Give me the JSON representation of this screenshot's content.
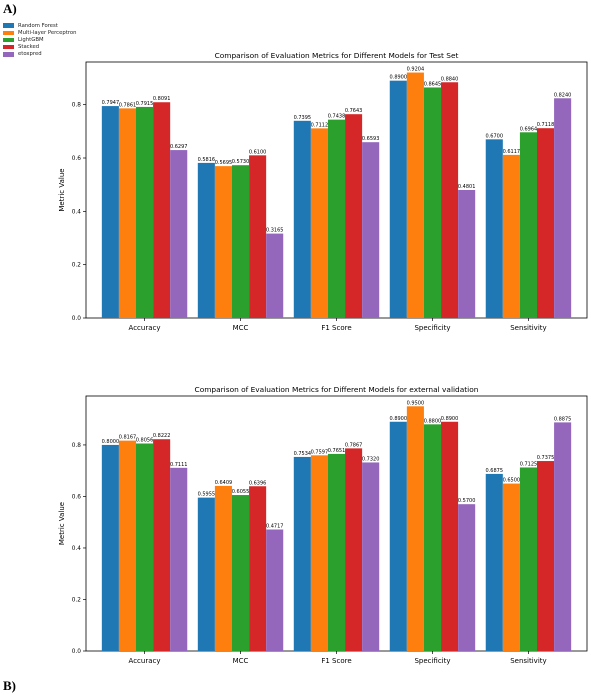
{
  "labels": {
    "top": "A)",
    "bottom": "B)"
  },
  "legend": [
    {
      "name": "Random Forest",
      "color": "#1f77b4"
    },
    {
      "name": "Multi-layer Perceptron",
      "color": "#ff7f0e"
    },
    {
      "name": "LightGBM",
      "color": "#2ca02c"
    },
    {
      "name": "Stacked",
      "color": "#d62728"
    },
    {
      "name": "etoxpred",
      "color": "#9467bd"
    }
  ],
  "chart_data": [
    {
      "type": "bar",
      "title": "Comparison of Evaluation Metrics for Different Models for Test Set",
      "ylabel": "Metric Value",
      "xlabel": "",
      "ylim": [
        0,
        0.96
      ],
      "yticks": [
        "0.0",
        "0.2",
        "0.4",
        "0.6",
        "0.8"
      ],
      "categories": [
        "Accuracy",
        "MCC",
        "F1 Score",
        "Specificity",
        "Sensitivity"
      ],
      "series": [
        {
          "name": "Random Forest",
          "color": "#1f77b4",
          "values": [
            0.7947,
            0.5816,
            0.7395,
            0.89,
            0.67
          ],
          "labels": [
            "0.7947",
            "0.5816",
            "0.7395",
            "0.8900",
            "0.6700"
          ]
        },
        {
          "name": "Multi-layer Perceptron",
          "color": "#ff7f0e",
          "values": [
            0.7861,
            0.5695,
            0.7112,
            0.9204,
            0.6117
          ],
          "labels": [
            "0.7861",
            "0.5695",
            "0.7112",
            "0.9204",
            "0.6117"
          ]
        },
        {
          "name": "LightGBM",
          "color": "#2ca02c",
          "values": [
            0.7915,
            0.573,
            0.7438,
            0.8645,
            0.6964
          ],
          "labels": [
            "0.7915",
            "0.5730",
            "0.7438",
            "0.8645",
            "0.6964"
          ]
        },
        {
          "name": "Stacked",
          "color": "#d62728",
          "values": [
            0.8091,
            0.61,
            0.7643,
            0.884,
            0.7118
          ],
          "labels": [
            "0.8091",
            "0.6100",
            "0.7643",
            "0.8840",
            "0.7118"
          ]
        },
        {
          "name": "etoxpred",
          "color": "#9467bd",
          "values": [
            0.6297,
            0.3165,
            0.6593,
            0.4801,
            0.824
          ],
          "labels": [
            "0.6297",
            "0.3165",
            "0.6593",
            "0.4801",
            "0.8240"
          ]
        }
      ]
    },
    {
      "type": "bar",
      "title": "Comparison of Evaluation Metrics for Different Models for external validation",
      "ylabel": "Metric Value",
      "xlabel": "",
      "ylim": [
        0,
        0.99
      ],
      "yticks": [
        "0.0",
        "0.2",
        "0.4",
        "0.6",
        "0.8"
      ],
      "categories": [
        "Accuracy",
        "MCC",
        "F1 Score",
        "Specificity",
        "Sensitivity"
      ],
      "series": [
        {
          "name": "Random Forest",
          "color": "#1f77b4",
          "values": [
            0.8,
            0.5955,
            0.7534,
            0.89,
            0.6875
          ],
          "labels": [
            "0.8000",
            "0.5955",
            "0.7534",
            "0.8900",
            "0.6875"
          ]
        },
        {
          "name": "Multi-layer Perceptron",
          "color": "#ff7f0e",
          "values": [
            0.8167,
            0.6409,
            0.7597,
            0.95,
            0.65
          ],
          "labels": [
            "0.8167",
            "0.6409",
            "0.7597",
            "0.9500",
            "0.6500"
          ]
        },
        {
          "name": "LightGBM",
          "color": "#2ca02c",
          "values": [
            0.8056,
            0.6055,
            0.7651,
            0.88,
            0.7125
          ],
          "labels": [
            "0.8056",
            "0.6055",
            "0.7651",
            "0.8800",
            "0.7125"
          ]
        },
        {
          "name": "Stacked",
          "color": "#d62728",
          "values": [
            0.8222,
            0.6396,
            0.7867,
            0.89,
            0.7375
          ],
          "labels": [
            "0.8222",
            "0.6396",
            "0.7867",
            "0.8900",
            "0.7375"
          ]
        },
        {
          "name": "etoxpred",
          "color": "#9467bd",
          "values": [
            0.7111,
            0.4717,
            0.732,
            0.57,
            0.8875
          ],
          "labels": [
            "0.7111",
            "0.4717",
            "0.7320",
            "0.5700",
            "0.8875"
          ]
        }
      ]
    }
  ]
}
